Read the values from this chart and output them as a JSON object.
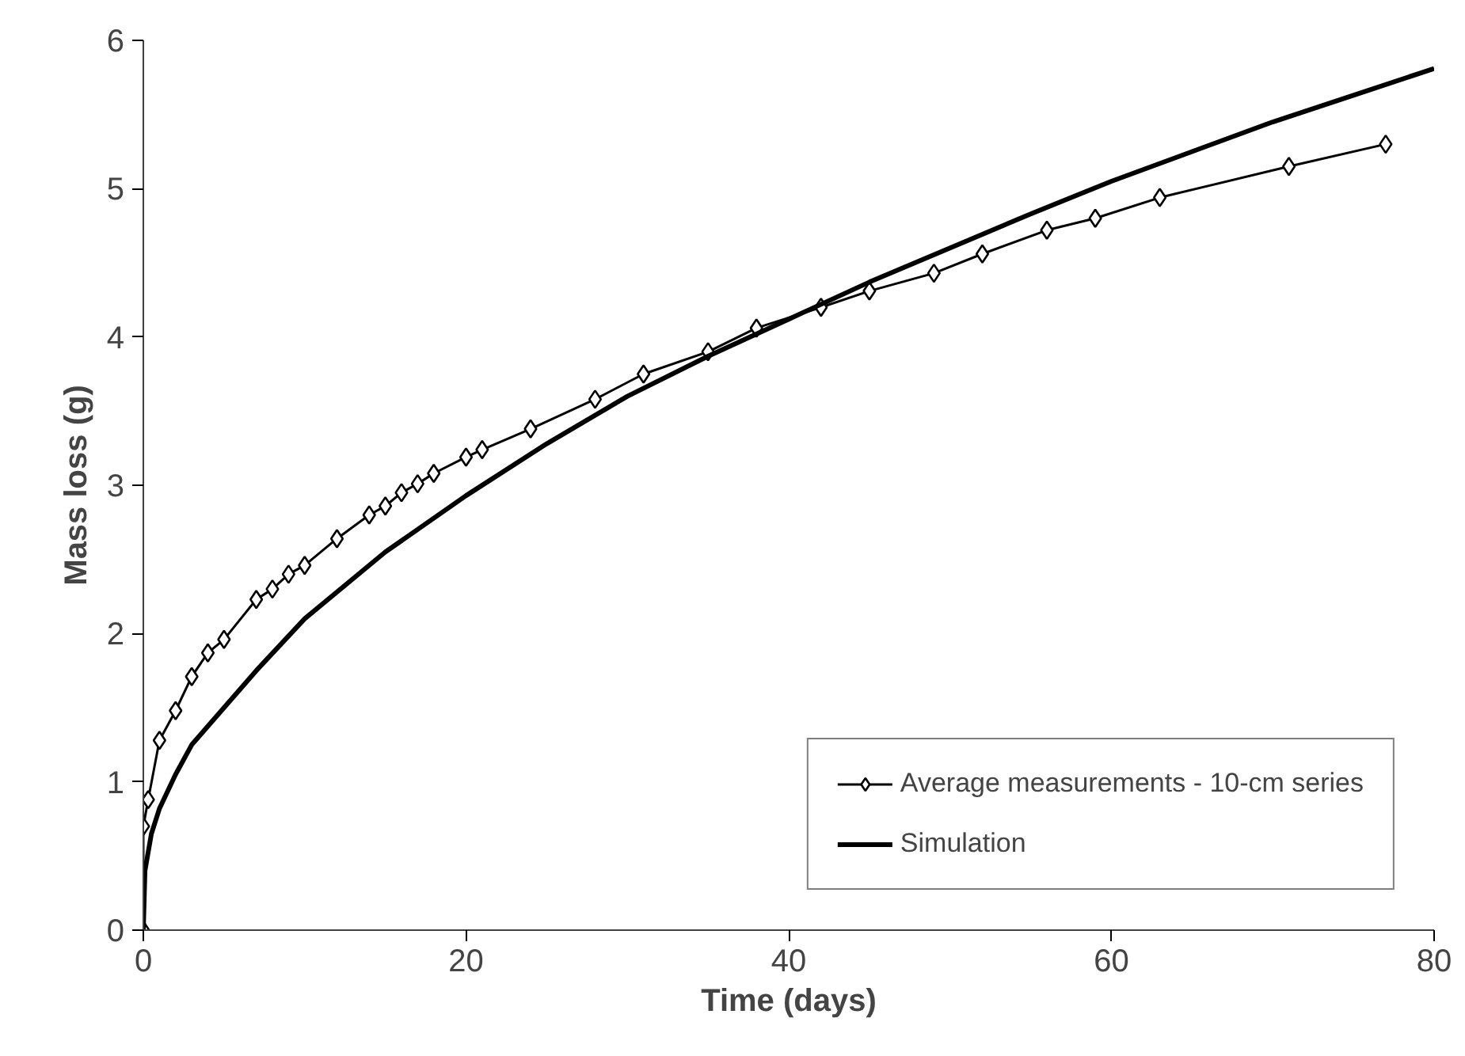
{
  "chart_data": {
    "type": "line",
    "xlabel": "Time (days)",
    "ylabel": "Mass loss (g)",
    "xlim": [
      0,
      80
    ],
    "ylim": [
      0,
      6
    ],
    "xticks": [
      0,
      20,
      40,
      60,
      80
    ],
    "yticks": [
      0,
      1,
      2,
      3,
      4,
      5,
      6
    ],
    "grid": false,
    "legend": "bottom right",
    "series": [
      {
        "name": "Average measurements - 10-cm series",
        "color": "#000000",
        "marker": "diamond",
        "x": [
          0,
          0,
          0.3,
          1,
          2,
          3,
          4,
          5,
          7,
          8,
          9,
          10,
          12,
          14,
          15,
          16,
          17,
          18,
          20,
          21,
          24,
          28,
          31,
          35,
          38,
          42,
          45,
          49,
          52,
          56,
          59,
          63,
          71,
          77
        ],
        "values": [
          0,
          0.7,
          0.88,
          1.28,
          1.48,
          1.71,
          1.87,
          1.96,
          2.23,
          2.3,
          2.4,
          2.46,
          2.64,
          2.8,
          2.86,
          2.95,
          3.01,
          3.08,
          3.19,
          3.24,
          3.38,
          3.58,
          3.75,
          3.9,
          4.06,
          4.2,
          4.31,
          4.43,
          4.56,
          4.72,
          4.8,
          4.94,
          5.15,
          5.3
        ]
      },
      {
        "name": "Simulation",
        "color": "#000000",
        "marker": "none",
        "x": [
          0,
          0.1,
          0.5,
          1,
          2,
          3,
          5,
          7,
          10,
          15,
          20,
          25,
          30,
          35,
          40,
          45,
          50,
          55,
          60,
          65,
          70,
          75,
          80
        ],
        "values": [
          0,
          0.4,
          0.65,
          0.82,
          1.05,
          1.25,
          1.5,
          1.75,
          2.1,
          2.55,
          2.93,
          3.28,
          3.6,
          3.87,
          4.12,
          4.37,
          4.6,
          4.83,
          5.05,
          5.25,
          5.45,
          5.63,
          5.81
        ]
      }
    ]
  }
}
